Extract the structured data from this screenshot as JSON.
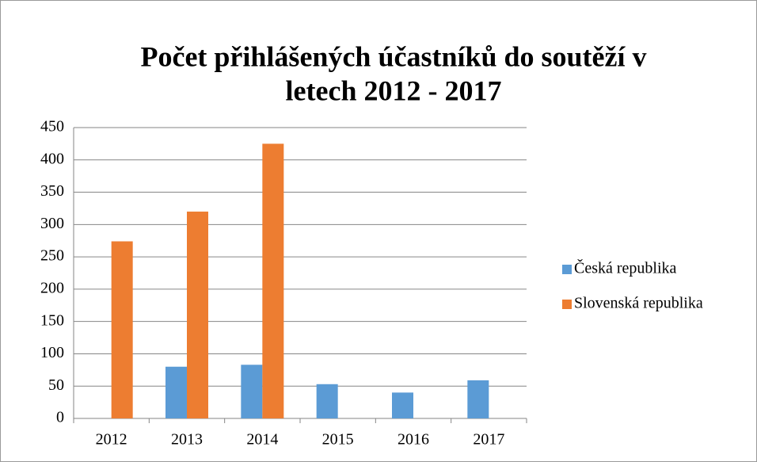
{
  "chart_data": {
    "type": "bar",
    "title": [
      "Počet přihlášených účastníků do soutěží  v",
      "letech 2012 - 2017"
    ],
    "categories": [
      "2012",
      "2013",
      "2014",
      "2015",
      "2016",
      "2017"
    ],
    "series": [
      {
        "name": "Česká republika",
        "color": "#5b9bd5",
        "values": [
          null,
          80,
          83,
          53,
          40,
          59
        ]
      },
      {
        "name": "Slovenská republika",
        "color": "#ed7d31",
        "values": [
          274,
          320,
          425,
          null,
          null,
          null
        ]
      }
    ],
    "ylim": [
      0,
      450
    ],
    "yticks": [
      0,
      50,
      100,
      150,
      200,
      250,
      300,
      350,
      400,
      450
    ],
    "grid": true,
    "legend": "right"
  }
}
